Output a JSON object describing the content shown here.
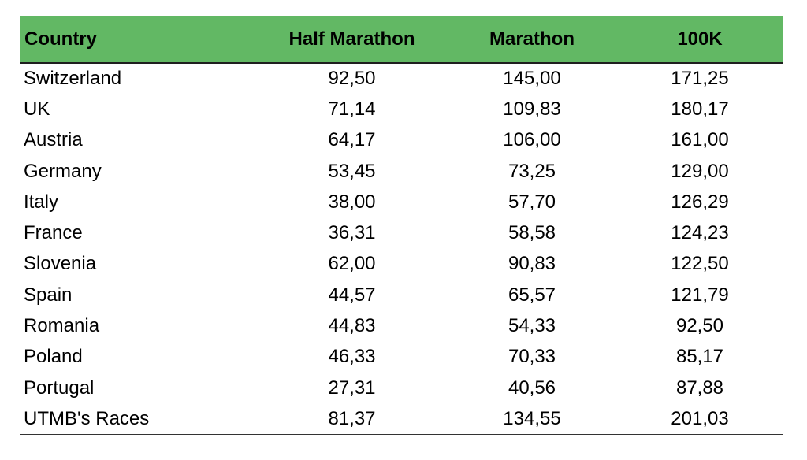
{
  "table": {
    "headers": {
      "country": "Country",
      "half_marathon": "Half Marathon",
      "marathon": "Marathon",
      "k100": "100K"
    },
    "rows": [
      {
        "country": "Switzerland",
        "half_marathon": "92,50",
        "marathon": "145,00",
        "k100": "171,25"
      },
      {
        "country": "UK",
        "half_marathon": "71,14",
        "marathon": "109,83",
        "k100": "180,17"
      },
      {
        "country": "Austria",
        "half_marathon": "64,17",
        "marathon": "106,00",
        "k100": "161,00"
      },
      {
        "country": "Germany",
        "half_marathon": "53,45",
        "marathon": "73,25",
        "k100": "129,00"
      },
      {
        "country": "Italy",
        "half_marathon": "38,00",
        "marathon": "57,70",
        "k100": "126,29"
      },
      {
        "country": "France",
        "half_marathon": "36,31",
        "marathon": "58,58",
        "k100": "124,23"
      },
      {
        "country": "Slovenia",
        "half_marathon": "62,00",
        "marathon": "90,83",
        "k100": "122,50"
      },
      {
        "country": "Spain",
        "half_marathon": "44,57",
        "marathon": "65,57",
        "k100": "121,79"
      },
      {
        "country": "Romania",
        "half_marathon": "44,83",
        "marathon": "54,33",
        "k100": "92,50"
      },
      {
        "country": "Poland",
        "half_marathon": "46,33",
        "marathon": "70,33",
        "k100": "85,17"
      },
      {
        "country": "Portugal",
        "half_marathon": "27,31",
        "marathon": "40,56",
        "k100": "87,88"
      },
      {
        "country": "UTMB's Races",
        "half_marathon": "81,37",
        "marathon": "134,55",
        "k100": "201,03"
      }
    ]
  },
  "colors": {
    "header_background": "#62b864",
    "text": "#000000",
    "rule": "#1f1f1f"
  }
}
